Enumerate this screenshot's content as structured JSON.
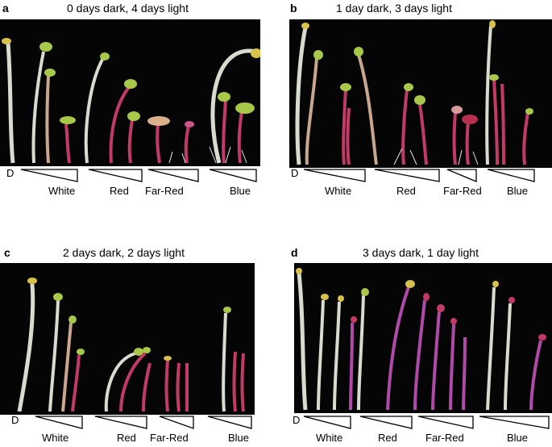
{
  "panels": [
    {
      "letter": "a",
      "title": "0 days dark, 4 days light",
      "dark_label": "D",
      "treatments": [
        "White",
        "Red",
        "Far-Red",
        "Blue"
      ]
    },
    {
      "letter": "b",
      "title": "1 day dark, 3 days light",
      "dark_label": "D",
      "treatments": [
        "White",
        "Red",
        "Far-Red",
        "Blue"
      ]
    },
    {
      "letter": "c",
      "title": "2 days dark, 2 days light",
      "dark_label": "D",
      "treatments": [
        "White",
        "Red",
        "Far-Red",
        "Blue"
      ]
    },
    {
      "letter": "d",
      "title": "3 days dark, 1 day light",
      "dark_label": "D",
      "treatments": [
        "White",
        "Red",
        "Far-Red",
        "Blue"
      ]
    }
  ],
  "colors": {
    "photo_background": "#050505",
    "pale_hypocotyl": "#d8dccf",
    "pink_hypocotyl": "#c23a66",
    "magenta_hypocotyl": "#b04aa8",
    "cotyledon_green": "#a8c84a",
    "cotyledon_yellow": "#d6c24a",
    "root_white": "#e8e8e8"
  }
}
